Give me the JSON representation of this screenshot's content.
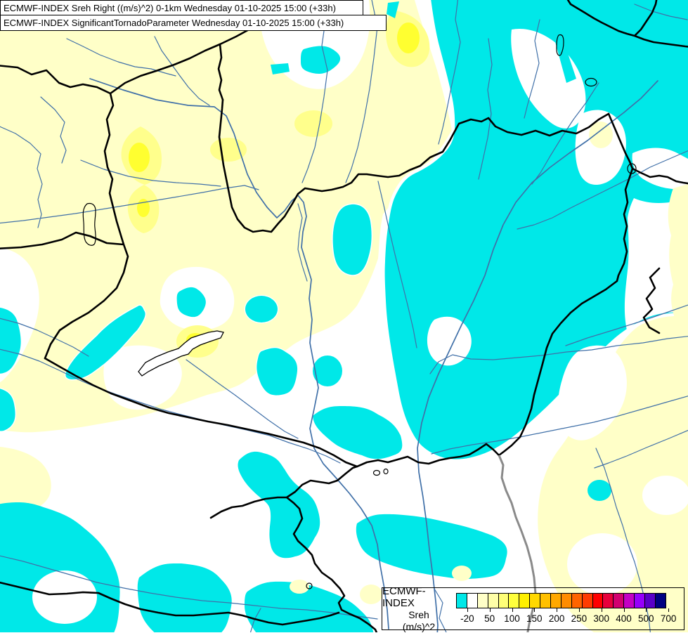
{
  "title_bar": {
    "line1": "ECMWF-INDEX Sreh Right ((m/s)^2) 0-1km Wednesday 01-10-2025 15:00 (+33h)",
    "line2": "ECMWF-INDEX SignificantTornadoParameter Wednesday 01-10-2025 15:00 (+33h)"
  },
  "legend": {
    "product_label": "ECMWF-INDEX",
    "parameter_label": "Sreh",
    "units_label": "(m/s)^2",
    "tick_labels": [
      "-20",
      "50",
      "100",
      "150",
      "200",
      "250",
      "300",
      "400",
      "500",
      "700"
    ],
    "colorbar_colors": [
      "#00E8E8",
      "#FFFFFF",
      "#FFFFC8",
      "#FFFFA8",
      "#FFFF78",
      "#FFFF3C",
      "#FFF000",
      "#FFD800",
      "#FFC000",
      "#FFA800",
      "#FF8C00",
      "#FF6400",
      "#FF3C00",
      "#FF0000",
      "#E8003C",
      "#D20070",
      "#C400C4",
      "#9600FA",
      "#5A00C8",
      "#000082"
    ]
  },
  "map": {
    "colors": {
      "background": "#FFFFFF",
      "pale_yellow": "#FFFFC8",
      "mid_yellow": "#FFFF8C",
      "bright_yellow": "#FFFF30",
      "cyan": "#00E8E8",
      "river": "#4070A8",
      "border": "#000000",
      "border_secondary": "#8A8A8A",
      "lake_outline": "#000000"
    }
  }
}
